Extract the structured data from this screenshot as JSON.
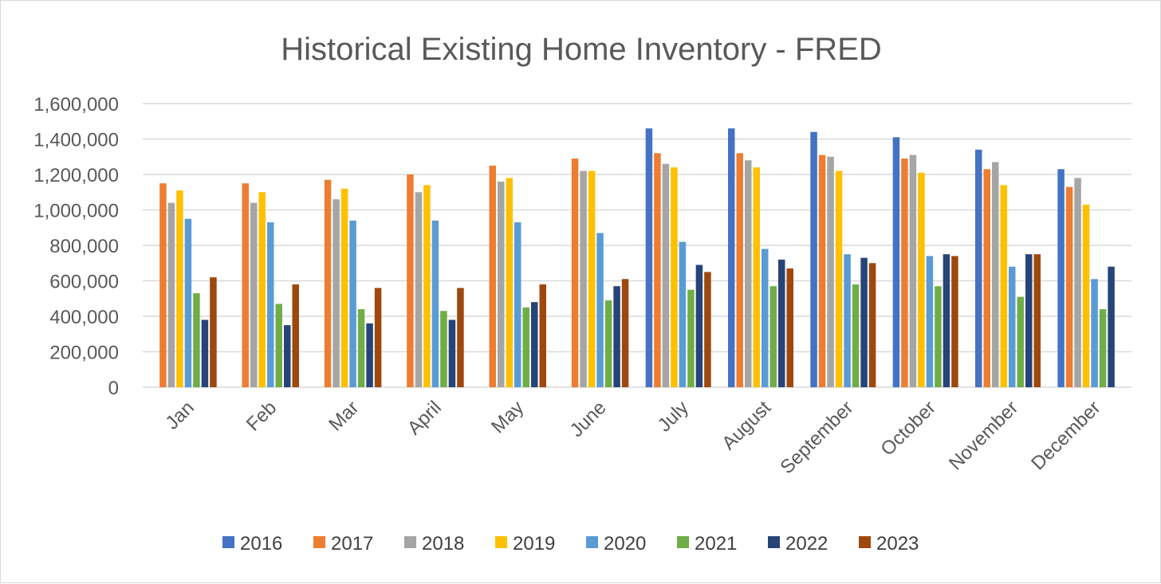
{
  "chart_data": {
    "type": "bar",
    "title": "Historical Existing Home Inventory - FRED",
    "xlabel": "",
    "ylabel": "",
    "ylim": [
      0,
      1600000
    ],
    "yticks": [
      0,
      200000,
      400000,
      600000,
      800000,
      1000000,
      1200000,
      1400000,
      1600000
    ],
    "ytick_labels": [
      "0",
      "200,000",
      "400,000",
      "600,000",
      "800,000",
      "1,000,000",
      "1,200,000",
      "1,400,000",
      "1,600,000"
    ],
    "grid": true,
    "legend_position": "bottom",
    "categories": [
      "Jan",
      "Feb",
      "Mar",
      "April",
      "May",
      "June",
      "July",
      "August",
      "September",
      "October",
      "November",
      "December"
    ],
    "series": [
      {
        "name": "2016",
        "color": "#4472c4",
        "values": [
          null,
          null,
          null,
          null,
          null,
          null,
          1460000,
          1460000,
          1440000,
          1410000,
          1340000,
          1230000
        ]
      },
      {
        "name": "2017",
        "color": "#ed7d31",
        "values": [
          1150000,
          1150000,
          1170000,
          1200000,
          1250000,
          1290000,
          1320000,
          1320000,
          1310000,
          1290000,
          1230000,
          1130000
        ]
      },
      {
        "name": "2018",
        "color": "#a5a5a5",
        "values": [
          1040000,
          1040000,
          1060000,
          1100000,
          1160000,
          1220000,
          1260000,
          1280000,
          1300000,
          1310000,
          1270000,
          1180000
        ]
      },
      {
        "name": "2019",
        "color": "#ffc000",
        "values": [
          1110000,
          1100000,
          1120000,
          1140000,
          1180000,
          1220000,
          1240000,
          1240000,
          1220000,
          1210000,
          1140000,
          1030000
        ]
      },
      {
        "name": "2020",
        "color": "#5b9bd5",
        "values": [
          950000,
          930000,
          940000,
          940000,
          930000,
          870000,
          820000,
          780000,
          750000,
          740000,
          680000,
          610000
        ]
      },
      {
        "name": "2021",
        "color": "#70ad47",
        "values": [
          530000,
          470000,
          440000,
          430000,
          450000,
          490000,
          550000,
          570000,
          580000,
          570000,
          510000,
          440000
        ]
      },
      {
        "name": "2022",
        "color": "#264478",
        "values": [
          380000,
          350000,
          360000,
          380000,
          480000,
          570000,
          690000,
          720000,
          730000,
          750000,
          750000,
          680000
        ]
      },
      {
        "name": "2023",
        "color": "#9e480e",
        "values": [
          620000,
          580000,
          560000,
          560000,
          580000,
          610000,
          650000,
          670000,
          700000,
          740000,
          750000,
          null
        ]
      }
    ]
  }
}
